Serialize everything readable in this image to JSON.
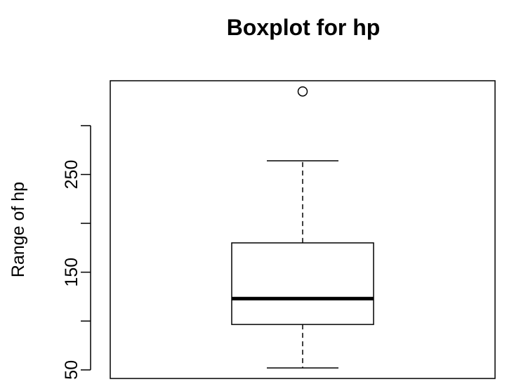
{
  "chart_data": {
    "type": "boxplot",
    "title": "Boxplot for hp",
    "ylabel": "Range of hp",
    "xlabel": "",
    "ylim": [
      50,
      335
    ],
    "y_ticks": [
      50,
      100,
      150,
      200,
      250,
      300
    ],
    "y_tick_labels": [
      "50",
      "",
      "150",
      "",
      "250",
      ""
    ],
    "series": [
      {
        "min": 52,
        "q1": 96.5,
        "median": 123,
        "q3": 180,
        "max": 264,
        "outliers": [
          335
        ]
      }
    ],
    "colors": {
      "stroke": "#000000",
      "fill": "#ffffff"
    }
  }
}
